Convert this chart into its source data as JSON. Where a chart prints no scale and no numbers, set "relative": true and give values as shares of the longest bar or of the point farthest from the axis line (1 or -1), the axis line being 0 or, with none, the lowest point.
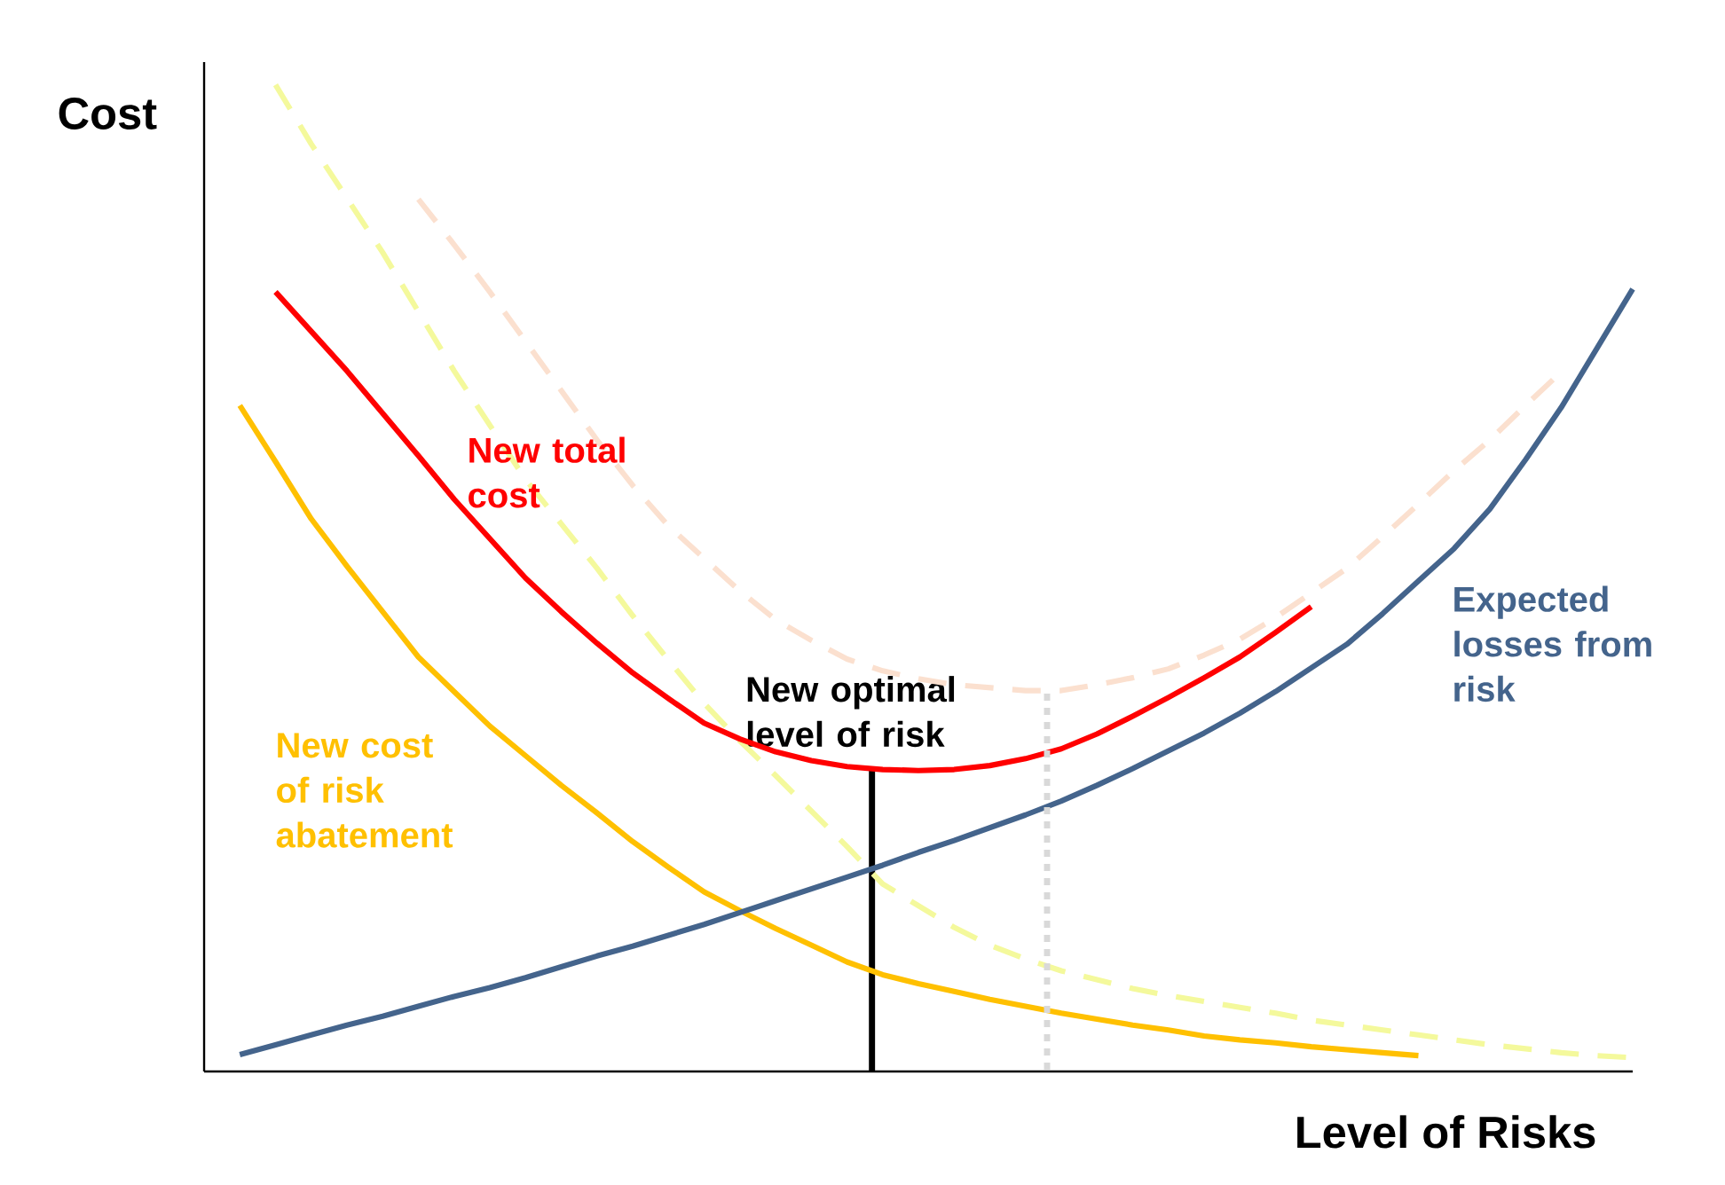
{
  "chart_data": {
    "type": "line",
    "relative": true,
    "ylabel": "Cost",
    "xlabel": "Level of Risks",
    "categories": [
      null,
      null,
      null,
      null,
      null,
      null,
      null,
      null,
      null,
      null,
      null,
      null,
      null,
      null,
      null,
      null,
      null,
      null,
      null,
      null,
      null,
      null,
      null,
      null,
      null,
      null,
      null,
      null,
      null,
      null,
      null,
      null,
      null,
      null,
      null,
      null,
      null,
      null,
      null,
      null,
      null
    ],
    "annotations": [
      "New optimal level of risk"
    ],
    "series": [
      {
        "color": "#f4f99c",
        "line_style": "dashed",
        "values": [
          null,
          null,
          1.0,
          0.94,
          0.885,
          0.83,
          0.77,
          0.71,
          0.655,
          0.6,
          0.555,
          0.51,
          0.462,
          0.417,
          0.373,
          0.335,
          0.3,
          0.264,
          0.228,
          0.19,
          0.168,
          0.146,
          0.128,
          0.114,
          0.102,
          0.093,
          0.084,
          0.077,
          0.071,
          0.065,
          0.059,
          0.052,
          0.047,
          0.042,
          0.037,
          0.032,
          0.027,
          0.023,
          0.019,
          0.016,
          0.014
        ]
      },
      {
        "color": "#fbe0cf",
        "line_style": "dashed",
        "values": [
          null,
          null,
          null,
          null,
          null,
          null,
          0.884,
          0.838,
          0.79,
          0.74,
          0.69,
          0.64,
          0.594,
          0.553,
          0.52,
          0.487,
          0.458,
          0.437,
          0.418,
          0.406,
          0.398,
          0.392,
          0.389,
          0.386,
          0.386,
          0.392,
          0.399,
          0.408,
          0.422,
          0.438,
          0.46,
          0.485,
          0.51,
          0.542,
          0.575,
          0.609,
          0.64,
          0.675,
          0.709,
          null,
          null
        ]
      },
      {
        "name": "New cost of risk abatement",
        "color": "#ffc000",
        "values": [
          null,
          0.675,
          0.618,
          0.56,
          0.512,
          0.466,
          0.42,
          0.385,
          0.35,
          0.32,
          0.29,
          0.262,
          0.233,
          0.207,
          0.182,
          0.163,
          0.145,
          0.128,
          0.111,
          0.098,
          0.089,
          0.081,
          0.073,
          0.066,
          0.059,
          0.053,
          0.047,
          0.042,
          0.036,
          0.032,
          0.029,
          0.025,
          0.022,
          0.019,
          0.016,
          null,
          null,
          null,
          null,
          null,
          null
        ]
      },
      {
        "name": "Expected losses from risk",
        "color": "#44648c",
        "values": [
          null,
          0.017,
          0.027,
          0.037,
          0.047,
          0.056,
          0.066,
          0.076,
          0.085,
          0.095,
          0.106,
          0.117,
          0.127,
          0.138,
          0.149,
          0.161,
          0.173,
          0.185,
          0.197,
          0.209,
          0.222,
          0.234,
          0.247,
          0.26,
          0.274,
          0.29,
          0.307,
          0.325,
          0.343,
          0.363,
          0.385,
          0.409,
          0.433,
          0.464,
          0.497,
          0.53,
          0.57,
          0.62,
          0.673,
          0.733,
          0.793
        ]
      },
      {
        "name": "New total cost",
        "color": "#ff0000",
        "values": [
          null,
          null,
          0.79,
          0.75,
          0.71,
          0.667,
          0.624,
          0.58,
          0.54,
          0.5,
          0.466,
          0.434,
          0.404,
          0.378,
          0.353,
          0.337,
          0.324,
          0.315,
          0.309,
          0.306,
          0.305,
          0.306,
          0.31,
          0.317,
          0.327,
          0.342,
          0.36,
          0.379,
          0.399,
          0.42,
          0.445,
          0.471,
          null,
          null,
          null,
          null,
          null,
          null,
          null,
          null,
          null
        ]
      }
    ]
  }
}
